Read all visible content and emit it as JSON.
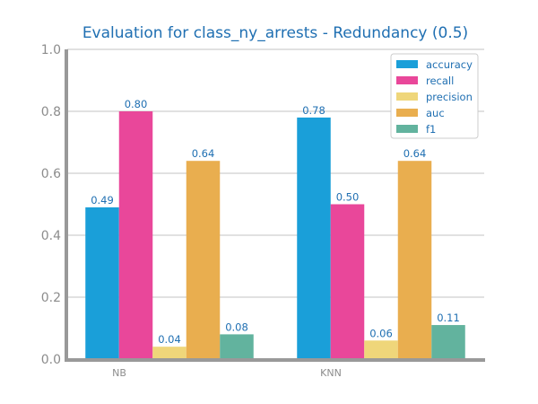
{
  "chart_data": {
    "type": "bar",
    "title": "Evaluation for class_ny_arrests - Redundancy (0.5)",
    "xlabel": "",
    "ylabel": "",
    "categories": [
      "NB",
      "KNN"
    ],
    "series": [
      {
        "name": "accuracy",
        "values": [
          0.49,
          0.78
        ],
        "labels": [
          "0.49",
          "0.78"
        ],
        "color": "#1a9fd9"
      },
      {
        "name": "recall",
        "values": [
          0.8,
          0.5
        ],
        "labels": [
          "0.80",
          "0.50"
        ],
        "color": "#e9479a"
      },
      {
        "name": "precision",
        "values": [
          0.04,
          0.06
        ],
        "labels": [
          "0.04",
          "0.06"
        ],
        "color": "#efd67a"
      },
      {
        "name": "auc",
        "values": [
          0.64,
          0.64
        ],
        "labels": [
          "0.64",
          "0.64"
        ],
        "color": "#e9ae4f"
      },
      {
        "name": "f1",
        "values": [
          0.08,
          0.11
        ],
        "labels": [
          "0.08",
          "0.11"
        ],
        "color": "#62b39e"
      }
    ],
    "ylim": [
      0,
      1.0
    ],
    "yticks": [
      "0.0",
      "0.2",
      "0.4",
      "0.6",
      "0.8",
      "1.0"
    ],
    "grid": true,
    "legend": "top-right"
  }
}
